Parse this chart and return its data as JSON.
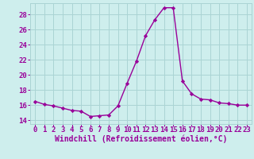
{
  "x": [
    0,
    1,
    2,
    3,
    4,
    5,
    6,
    7,
    8,
    9,
    10,
    11,
    12,
    13,
    14,
    15,
    16,
    17,
    18,
    19,
    20,
    21,
    22,
    23
  ],
  "y": [
    16.5,
    16.1,
    15.9,
    15.6,
    15.3,
    15.2,
    14.5,
    14.6,
    14.7,
    15.9,
    18.9,
    21.8,
    25.2,
    27.3,
    28.9,
    28.9,
    19.2,
    17.5,
    16.8,
    16.7,
    16.3,
    16.2,
    16.0,
    16.0
  ],
  "line_color": "#990099",
  "marker": "D",
  "marker_size": 2.2,
  "bg_color": "#ceeeed",
  "grid_color": "#aad4d4",
  "xlabel": "Windchill (Refroidissement éolien,°C)",
  "xlim": [
    -0.5,
    23.5
  ],
  "ylim": [
    13.5,
    29.5
  ],
  "yticks": [
    14,
    16,
    18,
    20,
    22,
    24,
    26,
    28
  ],
  "xticks": [
    0,
    1,
    2,
    3,
    4,
    5,
    6,
    7,
    8,
    9,
    10,
    11,
    12,
    13,
    14,
    15,
    16,
    17,
    18,
    19,
    20,
    21,
    22,
    23
  ],
  "tick_color": "#990099",
  "label_color": "#990099",
  "label_fontsize": 7.0,
  "tick_fontsize": 6.5,
  "linewidth": 1.0
}
